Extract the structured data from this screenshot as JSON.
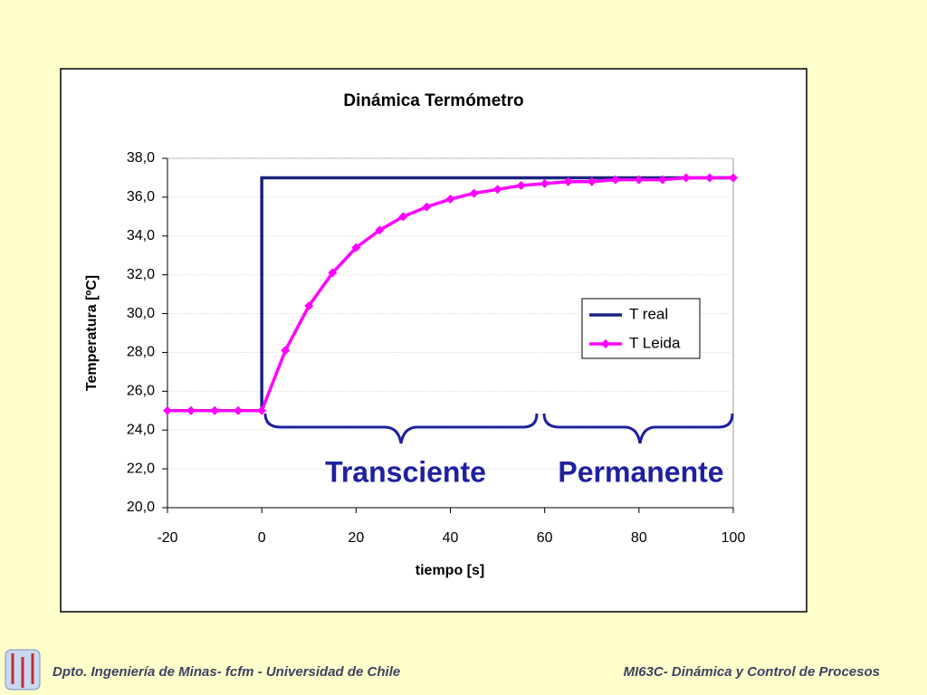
{
  "chart_data": {
    "type": "line",
    "title": "Dinámica Termómetro",
    "x_label": "tiempo [s]",
    "y_label": "Temperatura [ºC]",
    "xlim": [
      -20,
      100
    ],
    "xticks": [
      -20,
      0,
      20,
      40,
      60,
      80,
      100
    ],
    "ylim": [
      20,
      38
    ],
    "yticks": [
      {
        "value": 20,
        "label": "20,0"
      },
      {
        "value": 22,
        "label": "22,0"
      },
      {
        "value": 24,
        "label": "24,0"
      },
      {
        "value": 26,
        "label": "26,0"
      },
      {
        "value": 28,
        "label": "28,0"
      },
      {
        "value": 30,
        "label": "30,0"
      },
      {
        "value": 32,
        "label": "32,0"
      },
      {
        "value": 34,
        "label": "34,0"
      },
      {
        "value": 36,
        "label": "36,0"
      },
      {
        "value": 38,
        "label": "38,0"
      }
    ],
    "grid": true,
    "legend": "right",
    "series": [
      {
        "name": "T real",
        "color": "#1a237e",
        "x": [
          -20,
          0,
          0,
          100
        ],
        "values": [
          25,
          25,
          37,
          37
        ]
      },
      {
        "name": "T Leida",
        "color": "#ff00ff",
        "marker": "diamond",
        "x": [
          -20,
          -15,
          -10,
          -5,
          0,
          5,
          10,
          15,
          20,
          25,
          30,
          35,
          40,
          45,
          50,
          55,
          60,
          65,
          70,
          75,
          80,
          85,
          90,
          95,
          100
        ],
        "values": [
          25,
          25,
          25,
          25,
          25,
          28.1,
          30.4,
          32.1,
          33.4,
          34.3,
          35.0,
          35.5,
          35.9,
          36.2,
          36.4,
          36.6,
          36.7,
          36.8,
          36.8,
          36.9,
          36.9,
          36.9,
          37.0,
          37.0,
          37.0
        ]
      }
    ],
    "annotations": [
      "Transciente",
      "Permanente"
    ]
  },
  "footer": {
    "left": "Dpto.  Ingeniería de Minas- fcfm - Universidad de Chile",
    "right": "MI63C- Dinámica y Control de Procesos"
  }
}
